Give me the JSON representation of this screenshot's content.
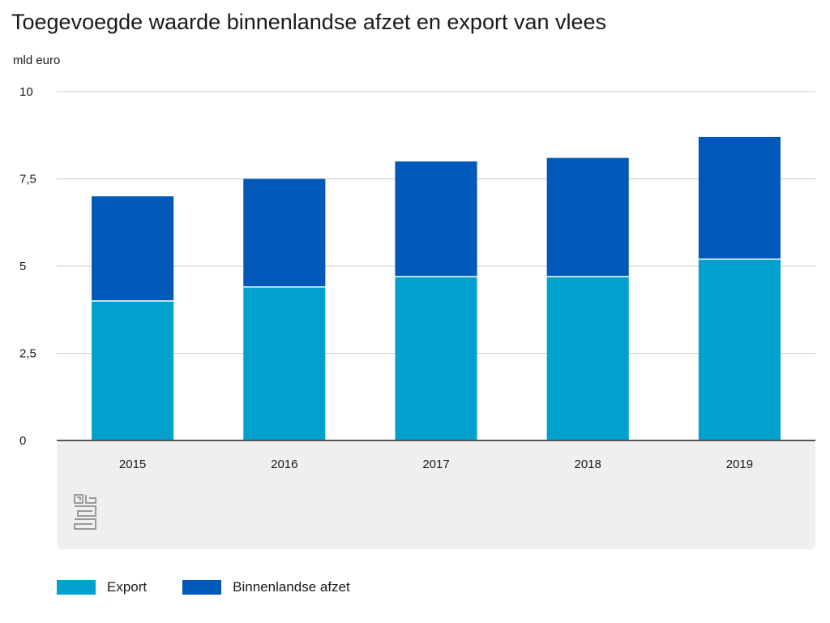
{
  "header": {
    "title": "Toegevoegde waarde binnenlandse afzet en export van vlees",
    "unit": "mld euro"
  },
  "chart_data": {
    "type": "bar",
    "stacked": true,
    "title": "Toegevoegde waarde binnenlandse afzet en export van vlees",
    "ylabel": "mld euro",
    "xlabel": "",
    "ylim": [
      0,
      10
    ],
    "yticks": [
      0,
      2.5,
      5,
      7.5,
      10
    ],
    "ytick_labels": [
      "0",
      "2,5",
      "5",
      "7,5",
      "10"
    ],
    "categories": [
      "2015",
      "2016",
      "2017",
      "2018",
      "2019"
    ],
    "series": [
      {
        "name": "Export",
        "color": "#00a1cd",
        "values": [
          4.0,
          4.4,
          4.7,
          4.7,
          5.2
        ]
      },
      {
        "name": "Binnenlandse afzet",
        "color": "#0058b8",
        "values": [
          3.0,
          3.1,
          3.3,
          3.4,
          3.5
        ]
      }
    ],
    "grid": true,
    "legend": "bottom-left"
  },
  "colors": {
    "plot_band": "#efefef",
    "gridline": "#cccccc",
    "baseline": "#555555"
  },
  "logo": {
    "name": "cbs-logo-icon"
  }
}
